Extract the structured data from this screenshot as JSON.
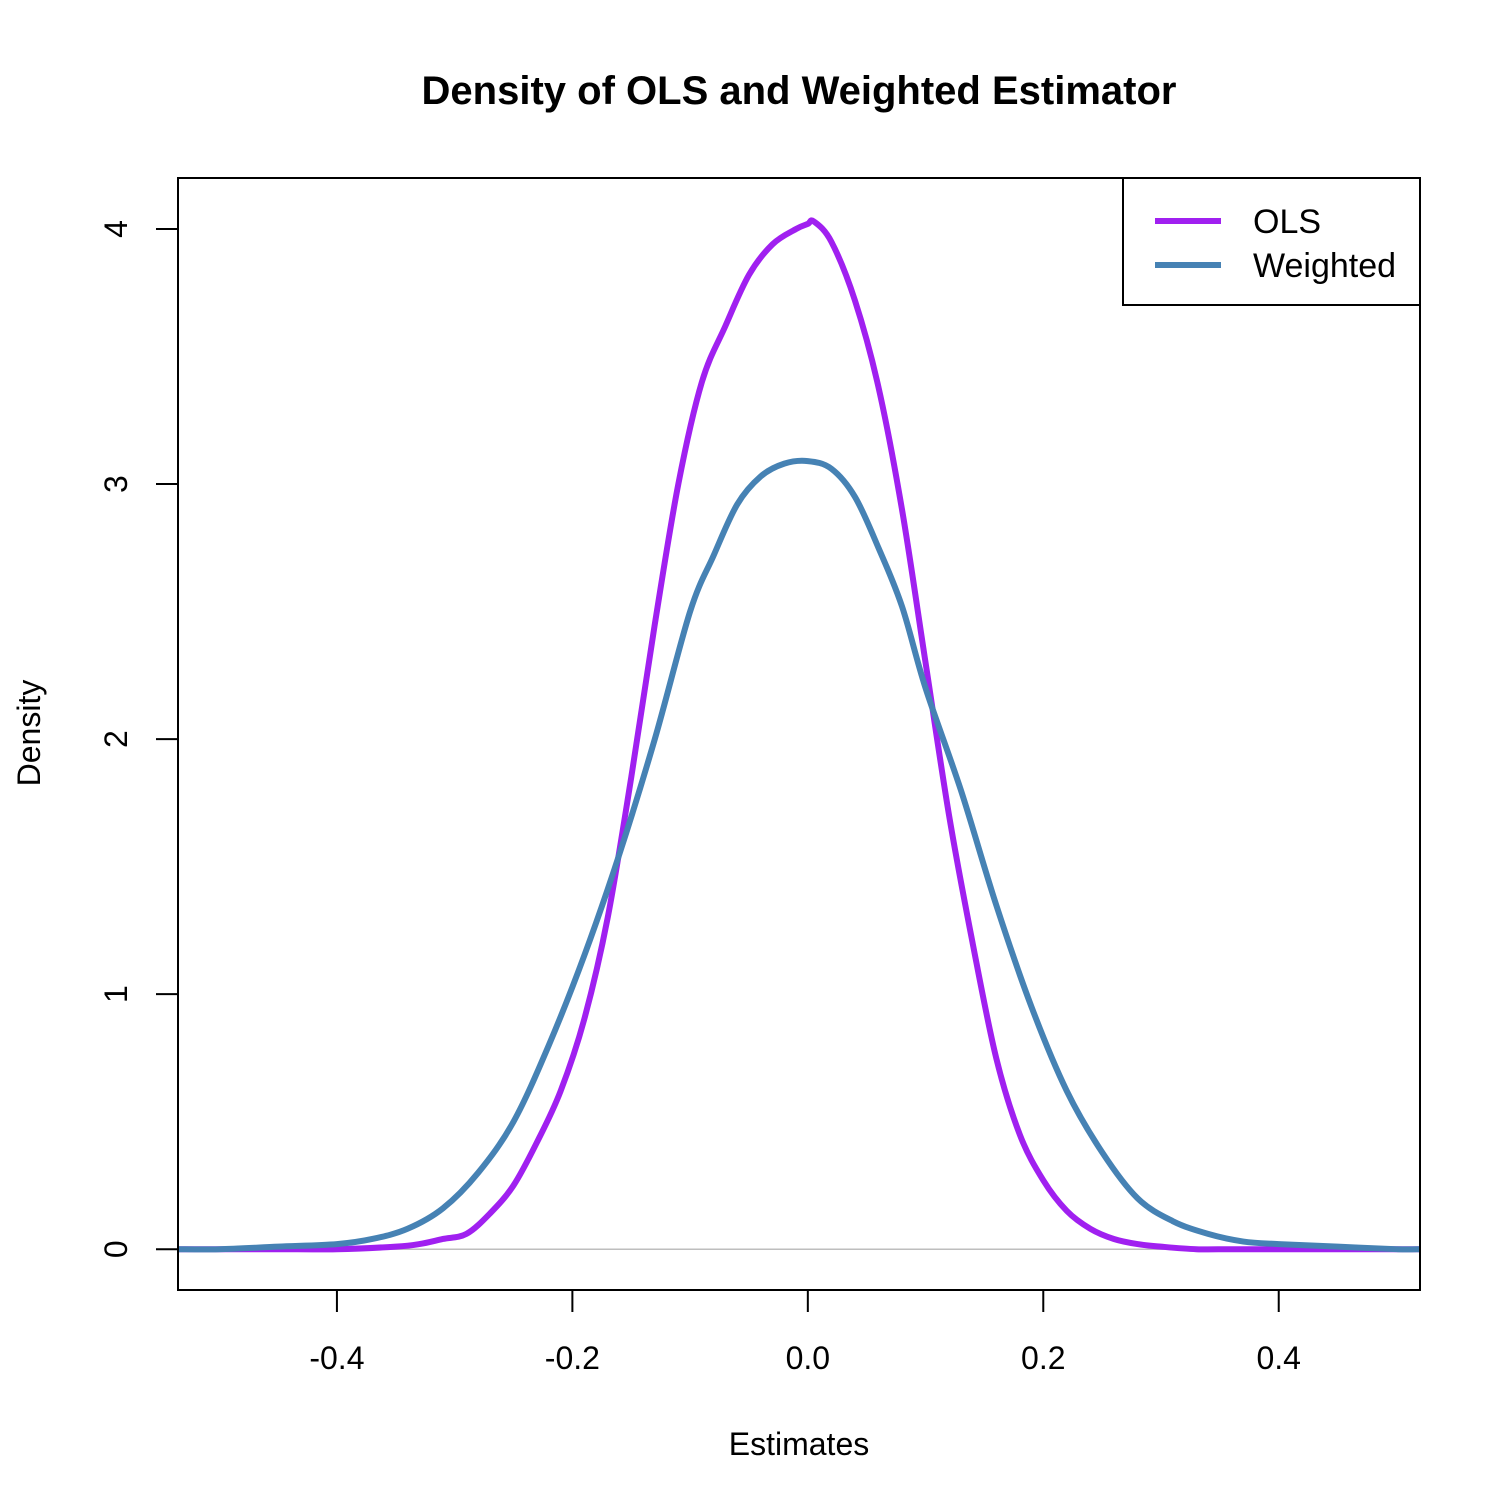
{
  "chart_data": {
    "type": "line",
    "title": "Density of OLS and Weighted Estimator",
    "xlabel": "Estimates",
    "ylabel": "Density",
    "xlim": [
      -0.535,
      0.52
    ],
    "ylim": [
      -0.16,
      4.2
    ],
    "x_ticks": [
      -0.4,
      -0.2,
      0.0,
      0.2,
      0.4
    ],
    "x_tick_labels": [
      "-0.4",
      "-0.2",
      "0.0",
      "0.2",
      "0.4"
    ],
    "y_ticks": [
      0,
      1,
      2,
      3,
      4
    ],
    "y_tick_labels": [
      "0",
      "1",
      "2",
      "3",
      "4"
    ],
    "grid": false,
    "baseline": 0,
    "legend": {
      "position": "top-right",
      "entries": [
        "OLS",
        "Weighted"
      ]
    },
    "series": [
      {
        "name": "OLS",
        "color": "#A020F0",
        "x": [
          -0.535,
          -0.5,
          -0.45,
          -0.4,
          -0.35,
          -0.33,
          -0.31,
          -0.29,
          -0.27,
          -0.25,
          -0.23,
          -0.21,
          -0.19,
          -0.17,
          -0.15,
          -0.13,
          -0.11,
          -0.09,
          -0.07,
          -0.05,
          -0.03,
          -0.01,
          0.0,
          0.005,
          0.02,
          0.04,
          0.06,
          0.08,
          0.1,
          0.12,
          0.14,
          0.16,
          0.18,
          0.2,
          0.22,
          0.24,
          0.26,
          0.28,
          0.3,
          0.33,
          0.36,
          0.4,
          0.45,
          0.5,
          0.52
        ],
        "values": [
          0.0,
          0.0,
          0.0,
          0.0,
          0.01,
          0.02,
          0.04,
          0.06,
          0.14,
          0.25,
          0.42,
          0.62,
          0.9,
          1.3,
          1.85,
          2.45,
          3.0,
          3.4,
          3.62,
          3.82,
          3.94,
          4.0,
          4.02,
          4.03,
          3.95,
          3.72,
          3.38,
          2.9,
          2.3,
          1.7,
          1.2,
          0.75,
          0.45,
          0.27,
          0.15,
          0.08,
          0.04,
          0.02,
          0.01,
          0.0,
          0.0,
          0.0,
          0.0,
          0.0,
          0.0
        ]
      },
      {
        "name": "Weighted",
        "color": "#4682B4",
        "x": [
          -0.535,
          -0.5,
          -0.45,
          -0.4,
          -0.37,
          -0.34,
          -0.31,
          -0.28,
          -0.25,
          -0.22,
          -0.19,
          -0.16,
          -0.13,
          -0.1,
          -0.08,
          -0.06,
          -0.04,
          -0.02,
          0.0,
          0.02,
          0.04,
          0.06,
          0.08,
          0.1,
          0.13,
          0.16,
          0.19,
          0.22,
          0.25,
          0.28,
          0.31,
          0.34,
          0.37,
          0.4,
          0.45,
          0.5,
          0.52
        ],
        "values": [
          0.0,
          0.0,
          0.01,
          0.02,
          0.04,
          0.08,
          0.16,
          0.3,
          0.5,
          0.8,
          1.15,
          1.55,
          2.0,
          2.5,
          2.72,
          2.92,
          3.03,
          3.08,
          3.09,
          3.06,
          2.95,
          2.75,
          2.52,
          2.2,
          1.8,
          1.35,
          0.95,
          0.62,
          0.38,
          0.2,
          0.11,
          0.06,
          0.03,
          0.02,
          0.01,
          0.0,
          0.0
        ]
      }
    ]
  }
}
